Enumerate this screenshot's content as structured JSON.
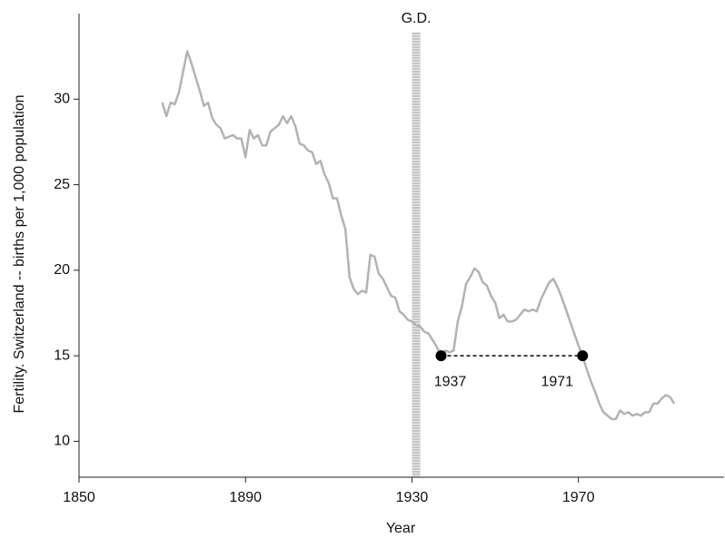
{
  "chart_data": {
    "type": "line",
    "x_label": "Year",
    "y_label": "Fertility. Switzerland -- births per 1,000 population",
    "x": [
      1870,
      1871,
      1872,
      1873,
      1874,
      1875,
      1876,
      1877,
      1878,
      1879,
      1880,
      1881,
      1882,
      1883,
      1884,
      1885,
      1886,
      1887,
      1888,
      1889,
      1890,
      1891,
      1892,
      1893,
      1894,
      1895,
      1896,
      1897,
      1898,
      1899,
      1900,
      1901,
      1902,
      1903,
      1904,
      1905,
      1906,
      1907,
      1908,
      1909,
      1910,
      1911,
      1912,
      1913,
      1914,
      1915,
      1916,
      1917,
      1918,
      1919,
      1920,
      1921,
      1922,
      1923,
      1924,
      1925,
      1926,
      1927,
      1928,
      1929,
      1930,
      1931,
      1932,
      1933,
      1934,
      1935,
      1936,
      1937,
      1938,
      1939,
      1940,
      1941,
      1942,
      1943,
      1944,
      1945,
      1946,
      1947,
      1948,
      1949,
      1950,
      1951,
      1952,
      1953,
      1954,
      1955,
      1956,
      1957,
      1958,
      1959,
      1960,
      1961,
      1962,
      1963,
      1964,
      1965,
      1966,
      1967,
      1968,
      1969,
      1970,
      1971,
      1972,
      1973,
      1974,
      1975,
      1976,
      1977,
      1978,
      1979,
      1980,
      1981,
      1982,
      1983,
      1984,
      1985,
      1986,
      1987,
      1988,
      1989,
      1990,
      1991,
      1992,
      1993
    ],
    "values": [
      29.8,
      29.0,
      29.8,
      29.7,
      30.4,
      31.6,
      32.8,
      32.1,
      31.3,
      30.5,
      29.6,
      29.8,
      28.9,
      28.5,
      28.3,
      27.7,
      27.8,
      27.9,
      27.7,
      27.7,
      26.6,
      28.2,
      27.7,
      27.9,
      27.3,
      27.3,
      28.1,
      28.3,
      28.5,
      29.0,
      28.6,
      29.0,
      28.4,
      27.4,
      27.3,
      27.0,
      26.9,
      26.2,
      26.4,
      25.6,
      25.1,
      24.2,
      24.2,
      23.2,
      22.4,
      19.6,
      18.9,
      18.6,
      18.8,
      18.7,
      20.9,
      20.8,
      19.8,
      19.5,
      19.0,
      18.5,
      18.4,
      17.6,
      17.4,
      17.1,
      17.0,
      16.8,
      16.7,
      16.4,
      16.3,
      15.9,
      15.5,
      15.0,
      15.3,
      15.2,
      15.3,
      17.0,
      17.9,
      19.2,
      19.6,
      20.1,
      19.9,
      19.3,
      19.1,
      18.5,
      18.1,
      17.2,
      17.4,
      17.0,
      17.0,
      17.1,
      17.4,
      17.7,
      17.6,
      17.7,
      17.6,
      18.3,
      18.8,
      19.3,
      19.5,
      19.0,
      18.4,
      17.7,
      17.0,
      16.3,
      15.6,
      15.0,
      14.2,
      13.5,
      12.9,
      12.2,
      11.7,
      11.5,
      11.3,
      11.3,
      11.8,
      11.6,
      11.7,
      11.5,
      11.6,
      11.5,
      11.7,
      11.7,
      12.2,
      12.2,
      12.5,
      12.7,
      12.6,
      12.2
    ],
    "color": "#b3b3b3",
    "xlim": [
      1850,
      2005
    ],
    "xticks": [
      1850,
      1890,
      1930,
      1970
    ],
    "ylim": [
      7.9,
      35
    ],
    "yticks": [
      10,
      15,
      20,
      25,
      30
    ],
    "band": {
      "label": "G.D.",
      "x": [
        1930,
        1932
      ]
    },
    "points": [
      {
        "x": 1937,
        "y": 15
      },
      {
        "x": 1971,
        "y": 15
      }
    ],
    "point_color": "#000000"
  }
}
